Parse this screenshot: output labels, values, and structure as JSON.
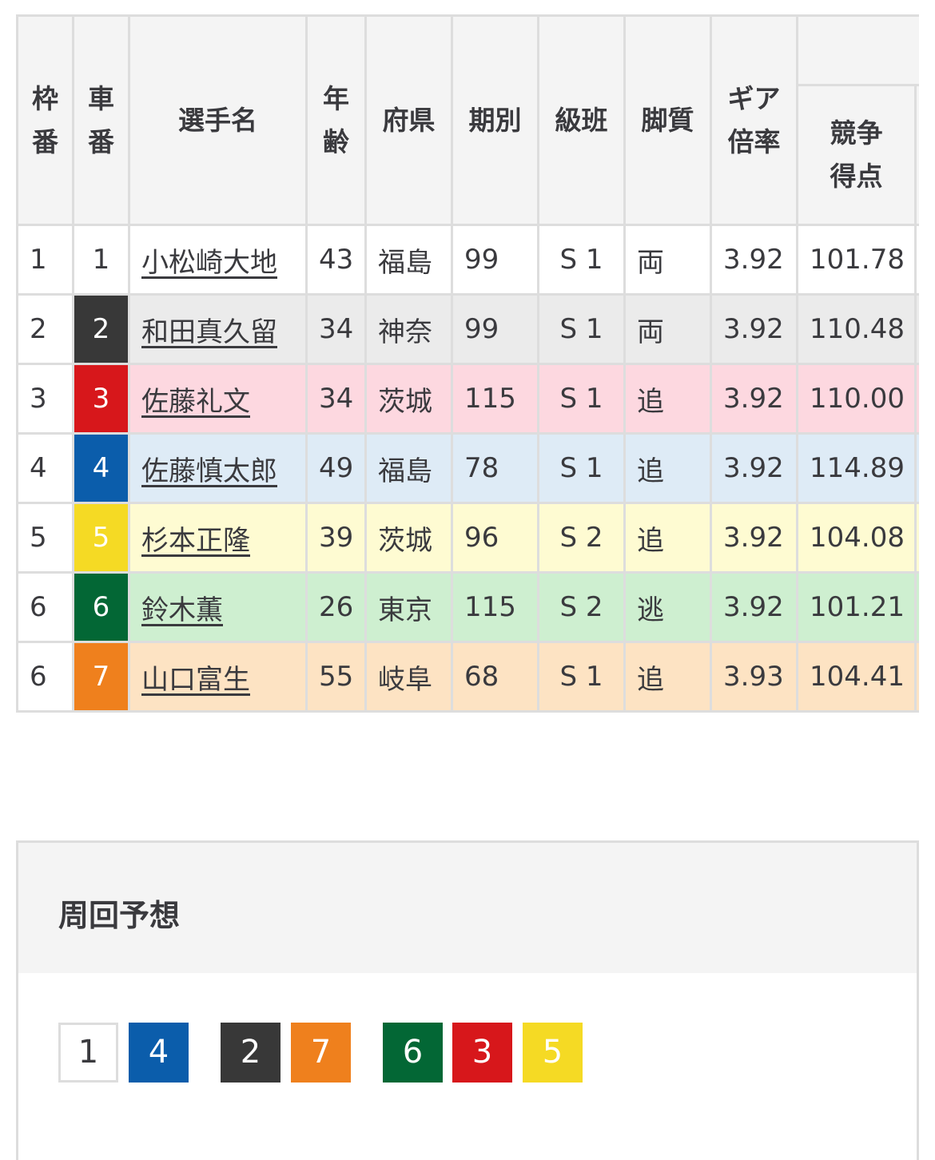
{
  "headers": {
    "waku": "枠\n番",
    "sha": "車\n番",
    "name": "選手名",
    "age": "年\n齢",
    "pref": "府県",
    "term": "期別",
    "class": "級班",
    "style": "脚質",
    "gear": "ギア\n倍率",
    "score": "競争\n得点"
  },
  "rows": [
    {
      "waku": "1",
      "car": "1",
      "name": "小松崎大地",
      "age": "43",
      "pref": "福島",
      "term": "99",
      "class": "S 1",
      "style": "両",
      "gear": "3.92",
      "score": "101.78",
      "car_color": "#ffffff",
      "car_text": "#3a3a3e",
      "row_color": "#ffffff"
    },
    {
      "waku": "2",
      "car": "2",
      "name": "和田真久留",
      "age": "34",
      "pref": "神奈",
      "term": "99",
      "class": "S 1",
      "style": "両",
      "gear": "3.92",
      "score": "110.48",
      "car_color": "#383838",
      "car_text": "#ffffff",
      "row_color": "#ebebeb"
    },
    {
      "waku": "3",
      "car": "3",
      "name": "佐藤礼文",
      "age": "34",
      "pref": "茨城",
      "term": "115",
      "class": "S 1",
      "style": "追",
      "gear": "3.92",
      "score": "110.00",
      "car_color": "#d7171b",
      "car_text": "#ffffff",
      "row_color": "#fdd8e0"
    },
    {
      "waku": "4",
      "car": "4",
      "name": "佐藤慎太郎",
      "age": "49",
      "pref": "福島",
      "term": "78",
      "class": "S 1",
      "style": "追",
      "gear": "3.92",
      "score": "114.89",
      "car_color": "#0b5dab",
      "car_text": "#ffffff",
      "row_color": "#deebf6"
    },
    {
      "waku": "5",
      "car": "5",
      "name": "杉本正隆",
      "age": "39",
      "pref": "茨城",
      "term": "96",
      "class": "S 2",
      "style": "追",
      "gear": "3.92",
      "score": "104.08",
      "car_color": "#f5da24",
      "car_text": "#ffffff",
      "row_color": "#fefbd2"
    },
    {
      "waku": "6",
      "car": "6",
      "name": "鈴木薫",
      "age": "26",
      "pref": "東京",
      "term": "115",
      "class": "S 2",
      "style": "逃",
      "gear": "3.92",
      "score": "101.21",
      "car_color": "#036735",
      "car_text": "#ffffff",
      "row_color": "#ceefd0"
    },
    {
      "waku": "6",
      "car": "7",
      "name": "山口富生",
      "age": "55",
      "pref": "岐阜",
      "term": "68",
      "class": "S 1",
      "style": "追",
      "gear": "3.93",
      "score": "104.41",
      "car_color": "#ef801d",
      "car_text": "#ffffff",
      "row_color": "#fde3c3"
    }
  ],
  "prediction": {
    "title": "周回予想",
    "chips": [
      {
        "num": "1",
        "color": "#ffffff"
      },
      {
        "num": "4",
        "color": "#0b5dab"
      },
      {
        "num": "2",
        "color": "#383838"
      },
      {
        "num": "7",
        "color": "#ef801d"
      },
      {
        "num": "6",
        "color": "#036735"
      },
      {
        "num": "3",
        "color": "#d7171b"
      },
      {
        "num": "5",
        "color": "#f5da24"
      }
    ]
  }
}
